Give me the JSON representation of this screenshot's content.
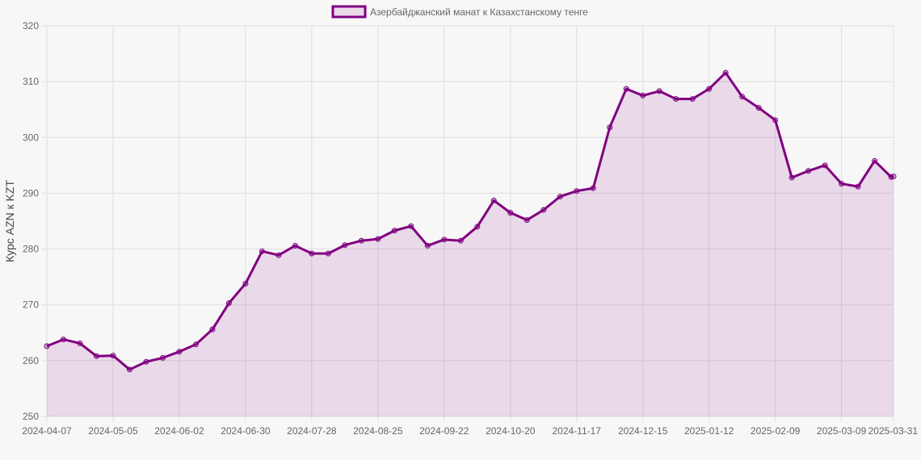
{
  "colors": {
    "line": "#800080",
    "fill": "rgba(128,0,128,0.12)",
    "grid": "#dddddd",
    "axis": "#999999"
  },
  "chart_data": {
    "type": "area",
    "ylabel": "Курс AZN к KZT",
    "ylim": [
      250,
      320
    ],
    "yticks": [
      250,
      260,
      270,
      280,
      290,
      300,
      310,
      320
    ],
    "grid": true,
    "legend_position": "top-center",
    "x_tick_labels": [
      "2024-04-07",
      "2024-05-05",
      "2024-06-02",
      "2024-06-30",
      "2024-07-28",
      "2024-08-25",
      "2024-09-22",
      "2024-10-20",
      "2024-11-17",
      "2024-12-15",
      "2025-01-12",
      "2025-02-09",
      "2025-03-09",
      "2025-03-31"
    ],
    "x": [
      "2024-04-07",
      "2024-04-14",
      "2024-04-21",
      "2024-04-28",
      "2024-05-05",
      "2024-05-12",
      "2024-05-19",
      "2024-05-26",
      "2024-06-02",
      "2024-06-09",
      "2024-06-16",
      "2024-06-23",
      "2024-06-30",
      "2024-07-07",
      "2024-07-14",
      "2024-07-21",
      "2024-07-28",
      "2024-08-04",
      "2024-08-11",
      "2024-08-18",
      "2024-08-25",
      "2024-09-01",
      "2024-09-08",
      "2024-09-15",
      "2024-09-22",
      "2024-09-29",
      "2024-10-06",
      "2024-10-13",
      "2024-10-20",
      "2024-10-27",
      "2024-11-03",
      "2024-11-10",
      "2024-11-17",
      "2024-11-24",
      "2024-12-01",
      "2024-12-08",
      "2024-12-15",
      "2024-12-22",
      "2024-12-29",
      "2025-01-05",
      "2025-01-12",
      "2025-01-19",
      "2025-01-26",
      "2025-02-02",
      "2025-02-09",
      "2025-02-16",
      "2025-02-23",
      "2025-03-02",
      "2025-03-09",
      "2025-03-16",
      "2025-03-23",
      "2025-03-30",
      "2025-03-31"
    ],
    "series": [
      {
        "name": "Азербайджанский манат к Казахстанскому тенге",
        "values": [
          262.6,
          263.8,
          263.1,
          260.8,
          260.9,
          258.4,
          259.8,
          260.5,
          261.6,
          262.9,
          265.6,
          270.3,
          273.8,
          279.6,
          278.9,
          280.6,
          279.2,
          279.2,
          280.7,
          281.5,
          281.8,
          283.3,
          284.1,
          280.6,
          281.7,
          281.5,
          284.0,
          288.7,
          286.5,
          285.2,
          287.0,
          289.4,
          290.4,
          290.9,
          301.8,
          308.7,
          307.5,
          308.3,
          306.9,
          306.9,
          308.7,
          311.6,
          307.3,
          305.3,
          303.1,
          292.8,
          294.0,
          295.0,
          291.7,
          291.2,
          295.8,
          292.9,
          293.0
        ]
      }
    ]
  }
}
